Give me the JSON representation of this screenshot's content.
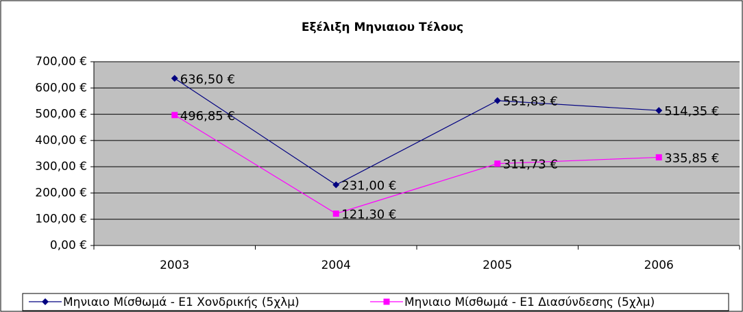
{
  "chart_data": {
    "type": "line",
    "title": "Εξέλιξη Μηνιαιου Τέλους",
    "categories": [
      "2003",
      "2004",
      "2005",
      "2006"
    ],
    "series": [
      {
        "name": "Μηνιαιο Μίσθωμά - Ε1 Χονδρικής (5χλμ)",
        "color": "#000080",
        "marker": "diamond",
        "values": [
          636.5,
          231.0,
          551.83,
          514.35
        ],
        "value_labels": [
          "636,50 €",
          "231,00 €",
          "551,83 €",
          "514,35 €"
        ]
      },
      {
        "name": "Μηνιαιο Μίσθωμά - Ε1 Διασύνδεσης (5χλμ)",
        "color": "#ff00ff",
        "marker": "square",
        "values": [
          496.85,
          121.3,
          311.73,
          335.85
        ],
        "value_labels": [
          "496,85 €",
          "121,30 €",
          "311,73 €",
          "335,85 €"
        ]
      }
    ],
    "ylim": [
      0,
      700
    ],
    "yticks": [
      {
        "value": 0,
        "label": "0,00 €"
      },
      {
        "value": 100,
        "label": "100,00 €"
      },
      {
        "value": 200,
        "label": "200,00 €"
      },
      {
        "value": 300,
        "label": "300,00 €"
      },
      {
        "value": 400,
        "label": "400,00 €"
      },
      {
        "value": 500,
        "label": "500,00 €"
      },
      {
        "value": 600,
        "label": "600,00 €"
      },
      {
        "value": 700,
        "label": "700,00 €"
      }
    ],
    "grid": true,
    "plot_background": "#c0c0c0",
    "legend": "bottom"
  }
}
